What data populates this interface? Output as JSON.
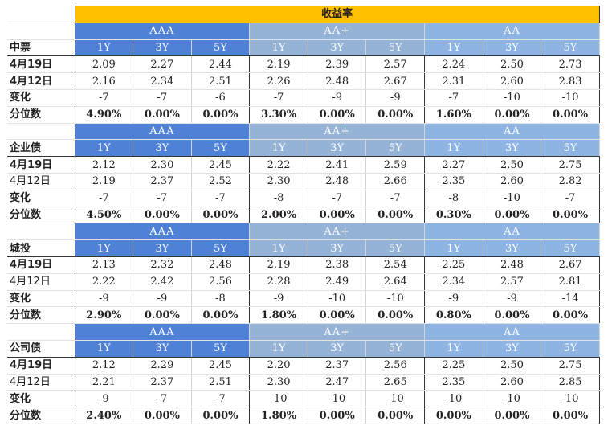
{
  "title": "收益率",
  "groups": [
    "AAA",
    "AA+",
    "AA"
  ],
  "tenors": [
    "1Y",
    "3Y",
    "5Y"
  ],
  "sections": [
    {
      "name": "中票",
      "rows": [
        {
          "label": "4月19日",
          "bold": true,
          "values": [
            "2.09",
            "2.27",
            "2.44",
            "2.19",
            "2.39",
            "2.57",
            "2.24",
            "2.50",
            "2.73"
          ]
        },
        {
          "label": "4月12日",
          "bold": true,
          "values": [
            "2.16",
            "2.34",
            "2.51",
            "2.26",
            "2.48",
            "2.67",
            "2.31",
            "2.60",
            "2.83"
          ]
        },
        {
          "label": "变化",
          "bold": true,
          "values": [
            "-7",
            "-7",
            "-6",
            "-7",
            "-9",
            "-9",
            "-7",
            "-10",
            "-10"
          ]
        },
        {
          "label": "分位数",
          "bold": true,
          "values": [
            "4.90%",
            "0.00%",
            "0.00%",
            "3.30%",
            "0.00%",
            "0.00%",
            "1.60%",
            "0.00%",
            "0.00%"
          ]
        }
      ]
    },
    {
      "name": "企业债",
      "rows": [
        {
          "label": "4月19日",
          "bold": true,
          "values": [
            "2.12",
            "2.30",
            "2.45",
            "2.22",
            "2.41",
            "2.59",
            "2.27",
            "2.50",
            "2.75"
          ]
        },
        {
          "label": "4月12日",
          "bold": false,
          "values": [
            "2.19",
            "2.37",
            "2.52",
            "2.30",
            "2.48",
            "2.66",
            "2.35",
            "2.60",
            "2.82"
          ]
        },
        {
          "label": "变化",
          "bold": true,
          "values": [
            "-7",
            "-7",
            "-7",
            "-8",
            "-7",
            "-7",
            "-8",
            "-10",
            "-7"
          ]
        },
        {
          "label": "分位数",
          "bold": true,
          "values": [
            "4.50%",
            "0.00%",
            "0.00%",
            "2.00%",
            "0.00%",
            "0.00%",
            "0.30%",
            "0.00%",
            "0.00%"
          ]
        }
      ]
    },
    {
      "name": "城投",
      "rows": [
        {
          "label": "4月19日",
          "bold": true,
          "values": [
            "2.13",
            "2.32",
            "2.48",
            "2.19",
            "2.38",
            "2.54",
            "2.25",
            "2.48",
            "2.67"
          ]
        },
        {
          "label": "4月12日",
          "bold": false,
          "values": [
            "2.22",
            "2.42",
            "2.56",
            "2.28",
            "2.49",
            "2.64",
            "2.34",
            "2.57",
            "2.81"
          ]
        },
        {
          "label": "变化",
          "bold": true,
          "values": [
            "-9",
            "-9",
            "-8",
            "-9",
            "-10",
            "-10",
            "-9",
            "-9",
            "-14"
          ]
        },
        {
          "label": "分位数",
          "bold": true,
          "values": [
            "2.90%",
            "0.00%",
            "0.00%",
            "1.80%",
            "0.00%",
            "0.00%",
            "0.80%",
            "0.00%",
            "0.00%"
          ]
        }
      ]
    },
    {
      "name": "公司债",
      "rows": [
        {
          "label": "4月19日",
          "bold": true,
          "values": [
            "2.12",
            "2.29",
            "2.45",
            "2.20",
            "2.37",
            "2.56",
            "2.25",
            "2.50",
            "2.75"
          ]
        },
        {
          "label": "4月12日",
          "bold": false,
          "values": [
            "2.21",
            "2.37",
            "2.51",
            "2.30",
            "2.47",
            "2.65",
            "2.35",
            "2.60",
            "2.85"
          ]
        },
        {
          "label": "变化",
          "bold": true,
          "values": [
            "-9",
            "-7",
            "-7",
            "-10",
            "-10",
            "-10",
            "-10",
            "-10",
            "-10"
          ]
        },
        {
          "label": "分位数",
          "bold": true,
          "values": [
            "2.40%",
            "0.00%",
            "0.00%",
            "1.80%",
            "0.00%",
            "0.00%",
            "0.00%",
            "0.00%",
            "0.00%"
          ]
        }
      ]
    }
  ],
  "colors": {
    "title_bg": "#ffc000",
    "aaa_bg": "#4f81d7",
    "aa_plus_bg": "#95b3d7",
    "aa_bg": "#8db4e3"
  }
}
